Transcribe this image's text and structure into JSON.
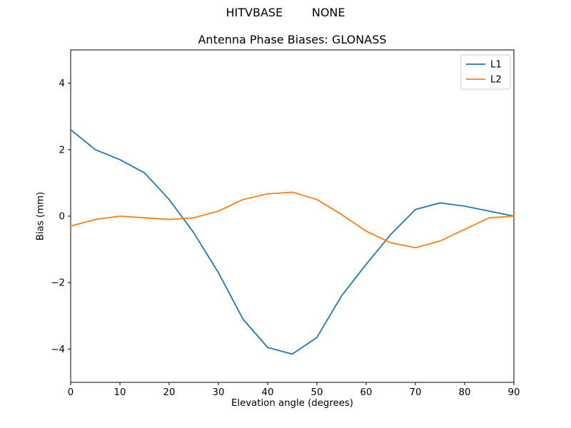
{
  "chart_data": {
    "type": "line",
    "title": "HITVBASE        NONE",
    "subtitle": "Antenna Phase Biases: GLONASS",
    "xlabel": "Elevation angle (degrees)",
    "ylabel": "Bias (mm)",
    "xlim": [
      0,
      90
    ],
    "ylim": [
      -5,
      5
    ],
    "xticks": [
      0,
      10,
      20,
      30,
      40,
      50,
      60,
      70,
      80,
      90
    ],
    "yticks": [
      -4,
      -2,
      0,
      2,
      4
    ],
    "grid": false,
    "legend_position": "upper right",
    "x": [
      0,
      5,
      10,
      15,
      20,
      25,
      30,
      35,
      40,
      45,
      50,
      55,
      60,
      65,
      70,
      75,
      80,
      85,
      90
    ],
    "series": [
      {
        "name": "L1",
        "color": "#1f77b4",
        "values": [
          2.6,
          2.0,
          1.7,
          1.3,
          0.5,
          -0.5,
          -1.7,
          -3.1,
          -3.95,
          -4.15,
          -3.65,
          -2.4,
          -1.45,
          -0.55,
          0.2,
          0.4,
          0.3,
          0.15,
          0.0
        ]
      },
      {
        "name": "L2",
        "color": "#ff7f0e",
        "values": [
          -0.3,
          -0.1,
          0.0,
          -0.05,
          -0.1,
          -0.05,
          0.15,
          0.5,
          0.67,
          0.72,
          0.5,
          0.05,
          -0.45,
          -0.8,
          -0.95,
          -0.75,
          -0.4,
          -0.05,
          0.0
        ]
      }
    ],
    "colors": {
      "spine": "#000000",
      "tick": "#000000",
      "legend_border": "#cccccc",
      "background": "#ffffff"
    }
  }
}
